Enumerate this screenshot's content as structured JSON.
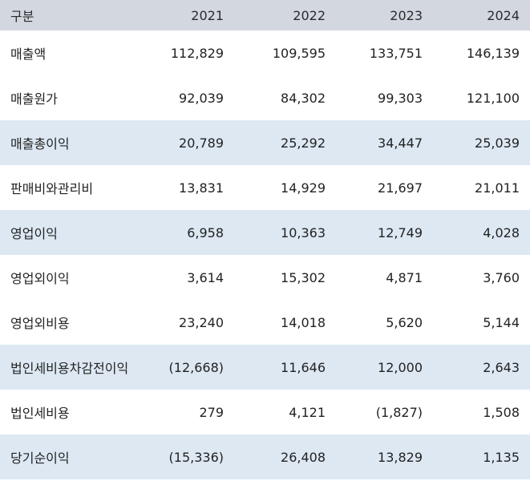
{
  "table": {
    "headers": [
      "구분",
      "2021",
      "2022",
      "2023",
      "2024"
    ],
    "rows": [
      {
        "label": "매출액",
        "values": [
          "112,829",
          "109,595",
          "133,751",
          "146,139"
        ],
        "highlight": false
      },
      {
        "label": "매출원가",
        "values": [
          "92,039",
          "84,302",
          "99,303",
          "121,100"
        ],
        "highlight": false
      },
      {
        "label": "매출총이익",
        "values": [
          "20,789",
          "25,292",
          "34,447",
          "25,039"
        ],
        "highlight": true
      },
      {
        "label": "판매비와관리비",
        "values": [
          "13,831",
          "14,929",
          "21,697",
          "21,011"
        ],
        "highlight": false
      },
      {
        "label": "영업이익",
        "values": [
          "6,958",
          "10,363",
          "12,749",
          "4,028"
        ],
        "highlight": true
      },
      {
        "label": "영업외이익",
        "values": [
          "3,614",
          "15,302",
          "4,871",
          "3,760"
        ],
        "highlight": false
      },
      {
        "label": "영업외비용",
        "values": [
          "23,240",
          "14,018",
          "5,620",
          "5,144"
        ],
        "highlight": false
      },
      {
        "label": "법인세비용차감전이익",
        "values": [
          "(12,668)",
          "11,646",
          "12,000",
          "2,643"
        ],
        "highlight": true
      },
      {
        "label": "법인세비용",
        "values": [
          "279",
          "4,121",
          "(1,827)",
          "1,508"
        ],
        "highlight": false
      },
      {
        "label": "당기순이익",
        "values": [
          "(15,336)",
          "26,408",
          "13,829",
          "1,135"
        ],
        "highlight": true
      }
    ]
  },
  "colors": {
    "header_bg": "#d2d7e0",
    "highlight_row_bg": "#dde8f3",
    "text": "#222222"
  }
}
